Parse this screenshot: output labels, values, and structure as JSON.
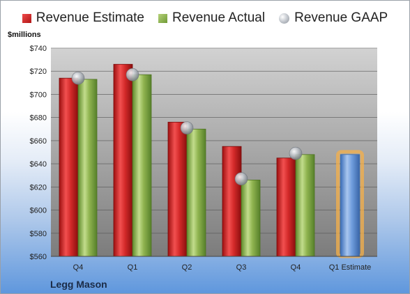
{
  "legend": {
    "estimate_label": "Revenue Estimate",
    "actual_label": "Revenue Actual",
    "gaap_label": "Revenue GAAP"
  },
  "unit_label": "$millions",
  "company": "Legg Mason",
  "colors": {
    "estimate": "#d42a2a",
    "actual": "#8fb34f",
    "projected": "#6f9ddd",
    "projected_glow": "#f5b04a",
    "plot_top": "#d2d2d2",
    "plot_bottom": "#7c7c7c"
  },
  "chart_data": {
    "type": "bar",
    "categories": [
      "Q4",
      "Q1",
      "Q2",
      "Q3",
      "Q4",
      "Q1 Estimate"
    ],
    "series": [
      {
        "name": "Revenue Estimate",
        "values": [
          714,
          726,
          676,
          655,
          645,
          null
        ]
      },
      {
        "name": "Revenue Actual",
        "values": [
          713,
          717,
          670,
          626,
          648,
          648
        ]
      },
      {
        "name": "Revenue GAAP",
        "values": [
          714,
          717,
          671,
          627,
          649,
          null
        ]
      }
    ],
    "projected_category": "Q1 Estimate",
    "ylabel": "$millions",
    "ylim": [
      560,
      740
    ],
    "yticks": [
      560,
      580,
      600,
      620,
      640,
      660,
      680,
      700,
      720,
      740
    ],
    "ytick_labels": [
      "$560",
      "$580",
      "$600",
      "$620",
      "$640",
      "$660",
      "$680",
      "$700",
      "$720",
      "$740"
    ],
    "grid": true,
    "legend_position": "top"
  }
}
